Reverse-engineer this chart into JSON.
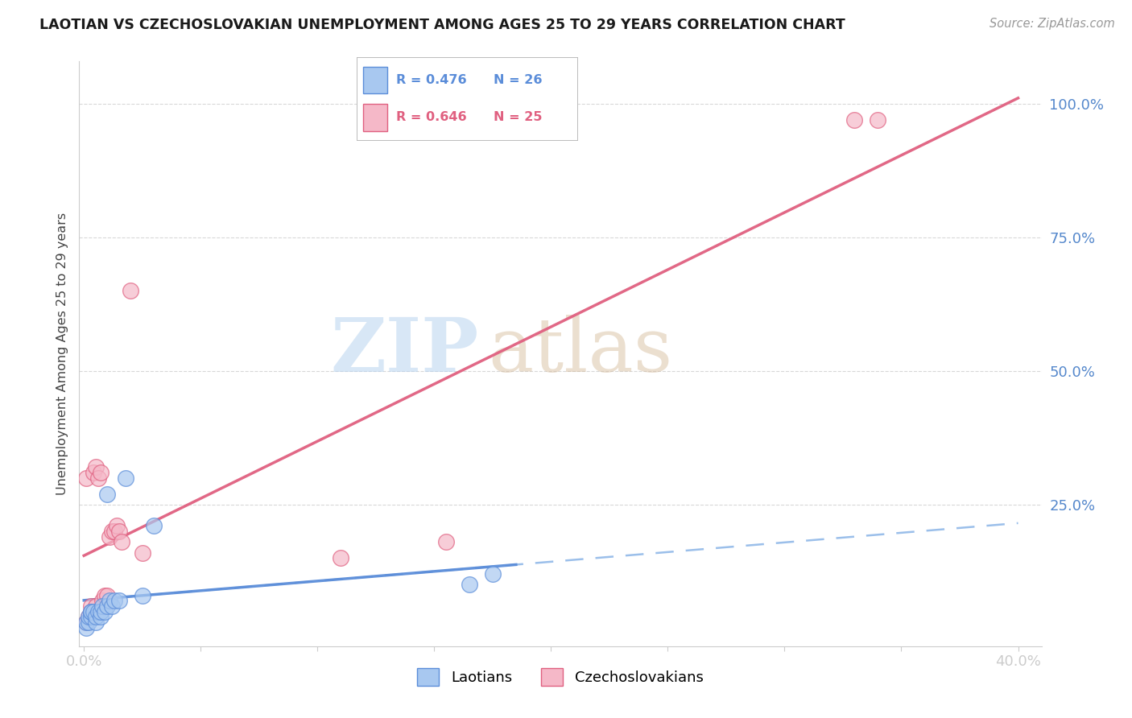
{
  "title": "LAOTIAN VS CZECHOSLOVAKIAN UNEMPLOYMENT AMONG AGES 25 TO 29 YEARS CORRELATION CHART",
  "source": "Source: ZipAtlas.com",
  "ylabel": "Unemployment Among Ages 25 to 29 years",
  "xlim": [
    -0.002,
    0.41
  ],
  "ylim": [
    -0.015,
    1.08
  ],
  "xticks": [
    0.0,
    0.05,
    0.1,
    0.15,
    0.2,
    0.25,
    0.3,
    0.35,
    0.4
  ],
  "xticklabels": [
    "0.0%",
    "",
    "",
    "",
    "",
    "",
    "",
    "",
    "40.0%"
  ],
  "yticks_right": [
    0.25,
    0.5,
    0.75,
    1.0
  ],
  "yticklabels_right": [
    "25.0%",
    "50.0%",
    "75.0%",
    "100.0%"
  ],
  "laotian_fill": "#a8c8f0",
  "laotian_edge": "#5b8dd9",
  "czechoslovakian_fill": "#f5b8c8",
  "czechoslovakian_edge": "#e06080",
  "laotian_line_color": "#5b8dd9",
  "czechoslovakian_line_color": "#e06080",
  "laotian_dashed_color": "#90b8e8",
  "background_color": "#ffffff",
  "grid_color": "#d8d8d8",
  "axis_color": "#cccccc",
  "right_label_color": "#5588cc",
  "x_label_color": "#5588cc",
  "title_color": "#1a1a1a",
  "source_color": "#999999",
  "watermark_zip_color": "#b8d4f0",
  "watermark_atlas_color": "#d4b896",
  "laotian_x": [
    0.001,
    0.001,
    0.002,
    0.002,
    0.003,
    0.003,
    0.003,
    0.004,
    0.005,
    0.005,
    0.006,
    0.007,
    0.007,
    0.008,
    0.009,
    0.01,
    0.01,
    0.011,
    0.012,
    0.013,
    0.015,
    0.018,
    0.025,
    0.03,
    0.165,
    0.175
  ],
  "laotian_y": [
    0.02,
    0.03,
    0.03,
    0.04,
    0.04,
    0.05,
    0.05,
    0.05,
    0.03,
    0.04,
    0.05,
    0.04,
    0.05,
    0.06,
    0.05,
    0.06,
    0.27,
    0.07,
    0.06,
    0.07,
    0.07,
    0.3,
    0.08,
    0.21,
    0.1,
    0.12
  ],
  "czechoslovakian_x": [
    0.001,
    0.001,
    0.002,
    0.003,
    0.003,
    0.004,
    0.005,
    0.005,
    0.006,
    0.007,
    0.008,
    0.009,
    0.01,
    0.011,
    0.012,
    0.013,
    0.014,
    0.015,
    0.016,
    0.02,
    0.025,
    0.11,
    0.155,
    0.33,
    0.34
  ],
  "czechoslovakian_y": [
    0.03,
    0.3,
    0.04,
    0.05,
    0.06,
    0.31,
    0.32,
    0.06,
    0.3,
    0.31,
    0.07,
    0.08,
    0.08,
    0.19,
    0.2,
    0.2,
    0.21,
    0.2,
    0.18,
    0.65,
    0.16,
    0.15,
    0.18,
    0.97,
    0.97
  ],
  "laotian_N": 26,
  "czechoslovakian_N": 25,
  "laotian_R": 0.476,
  "czechoslovakian_R": 0.646
}
